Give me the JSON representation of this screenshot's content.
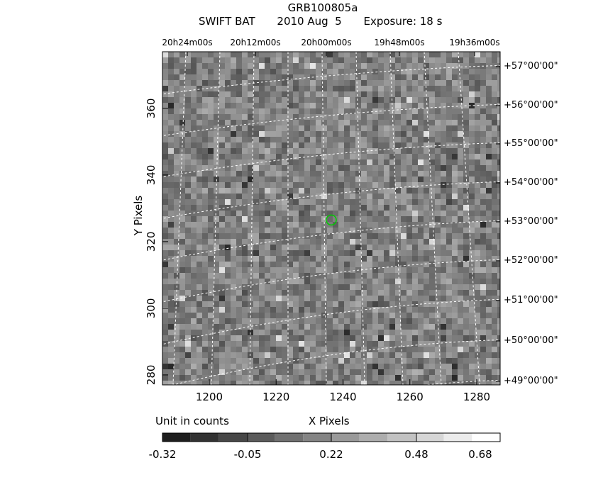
{
  "header": {
    "title": "GRB100805a",
    "instrument": "SWIFT BAT",
    "date": "2010 Aug  5",
    "exposure": "Exposure: 18 s"
  },
  "colorbar": {
    "unit_label": "Unit in counts",
    "tick_labels": [
      "-0.32",
      "-0.05",
      "0.22",
      "0.48",
      "0.68"
    ]
  },
  "chart_data": {
    "type": "heatmap",
    "title": "GRB100805a",
    "xlabel": "X Pixels",
    "ylabel": "Y Pixels",
    "xlim": [
      1186,
      1287
    ],
    "ylim": [
      277,
      377
    ],
    "x_ticks": [
      1200,
      1220,
      1240,
      1260,
      1280
    ],
    "y_ticks": [
      280,
      300,
      320,
      340,
      360
    ],
    "ra_tick_labels": [
      "20h24m00s",
      "20h12m00s",
      "20h00m00s",
      "19h48m00s",
      "19h36m00s"
    ],
    "dec_tick_labels": [
      "+57°00'00\"",
      "+56°00'00\"",
      "+55°00'00\"",
      "+54°00'00\"",
      "+53°00'00\"",
      "+52°00'00\"",
      "+51°00'00\"",
      "+50°00'00\"",
      "+49°00'00\""
    ],
    "value_range": [
      -0.32,
      0.68
    ],
    "colormap": "grayscale",
    "grid": true,
    "source_marker": {
      "x": 1236.5,
      "y": 326.5,
      "color": "#00cc00"
    }
  }
}
